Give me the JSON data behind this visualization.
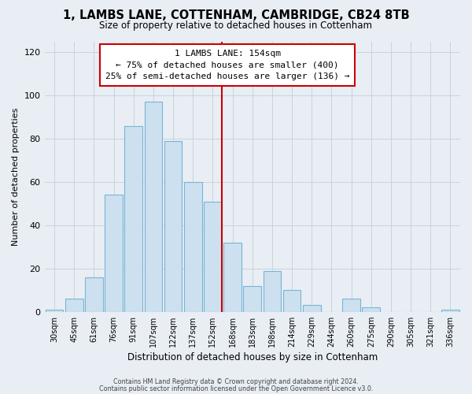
{
  "title": "1, LAMBS LANE, COTTENHAM, CAMBRIDGE, CB24 8TB",
  "subtitle": "Size of property relative to detached houses in Cottenham",
  "xlabel": "Distribution of detached houses by size in Cottenham",
  "ylabel": "Number of detached properties",
  "bar_labels": [
    "30sqm",
    "45sqm",
    "61sqm",
    "76sqm",
    "91sqm",
    "107sqm",
    "122sqm",
    "137sqm",
    "152sqm",
    "168sqm",
    "183sqm",
    "198sqm",
    "214sqm",
    "229sqm",
    "244sqm",
    "260sqm",
    "275sqm",
    "290sqm",
    "305sqm",
    "321sqm",
    "336sqm"
  ],
  "bar_values": [
    1,
    6,
    16,
    54,
    86,
    97,
    79,
    60,
    51,
    32,
    12,
    19,
    10,
    3,
    0,
    6,
    2,
    0,
    0,
    0,
    1
  ],
  "bar_color": "#cce0f0",
  "bar_edge_color": "#7ab4d4",
  "vline_color": "#cc0000",
  "annotation_title": "1 LAMBS LANE: 154sqm",
  "annotation_line1": "← 75% of detached houses are smaller (400)",
  "annotation_line2": "25% of semi-detached houses are larger (136) →",
  "annotation_box_color": "#ffffff",
  "annotation_box_edge": "#cc0000",
  "ylim": [
    0,
    125
  ],
  "yticks": [
    0,
    20,
    40,
    60,
    80,
    100,
    120
  ],
  "footer1": "Contains HM Land Registry data © Crown copyright and database right 2024.",
  "footer2": "Contains public sector information licensed under the Open Government Licence v3.0.",
  "background_color": "#e8eef4"
}
